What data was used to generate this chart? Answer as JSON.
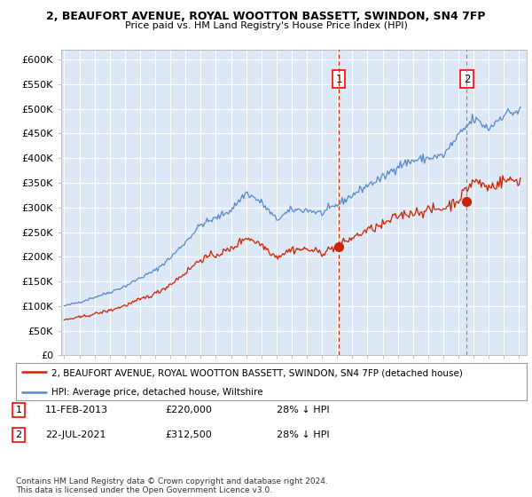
{
  "title": "2, BEAUFORT AVENUE, ROYAL WOOTTON BASSETT, SWINDON, SN4 7FP",
  "subtitle": "Price paid vs. HM Land Registry's House Price Index (HPI)",
  "ylabel_ticks": [
    "£0",
    "£50K",
    "£100K",
    "£150K",
    "£200K",
    "£250K",
    "£300K",
    "£350K",
    "£400K",
    "£450K",
    "£500K",
    "£550K",
    "£600K"
  ],
  "ytick_vals": [
    0,
    50000,
    100000,
    150000,
    200000,
    250000,
    300000,
    350000,
    400000,
    450000,
    500000,
    550000,
    600000
  ],
  "ylim": [
    0,
    620000
  ],
  "background_color": "#dce8f5",
  "hpi_color": "#5588cc",
  "price_color": "#cc2200",
  "transaction1_x": 2013.1,
  "transaction1_price": 220000,
  "transaction2_x": 2021.55,
  "transaction2_price": 312500,
  "legend_price_label": "2, BEAUFORT AVENUE, ROYAL WOOTTON BASSETT, SWINDON, SN4 7FP (detached house)",
  "legend_hpi_label": "HPI: Average price, detached house, Wiltshire",
  "annotation1_label": "1",
  "annotation1_date": "11-FEB-2013",
  "annotation1_price": "£220,000",
  "annotation1_hpi": "28% ↓ HPI",
  "annotation2_label": "2",
  "annotation2_date": "22-JUL-2021",
  "annotation2_price": "£312,500",
  "annotation2_hpi": "28% ↓ HPI",
  "footer": "Contains HM Land Registry data © Crown copyright and database right 2024.\nThis data is licensed under the Open Government Licence v3.0.",
  "xmin": 1994.8,
  "xmax": 2025.5
}
